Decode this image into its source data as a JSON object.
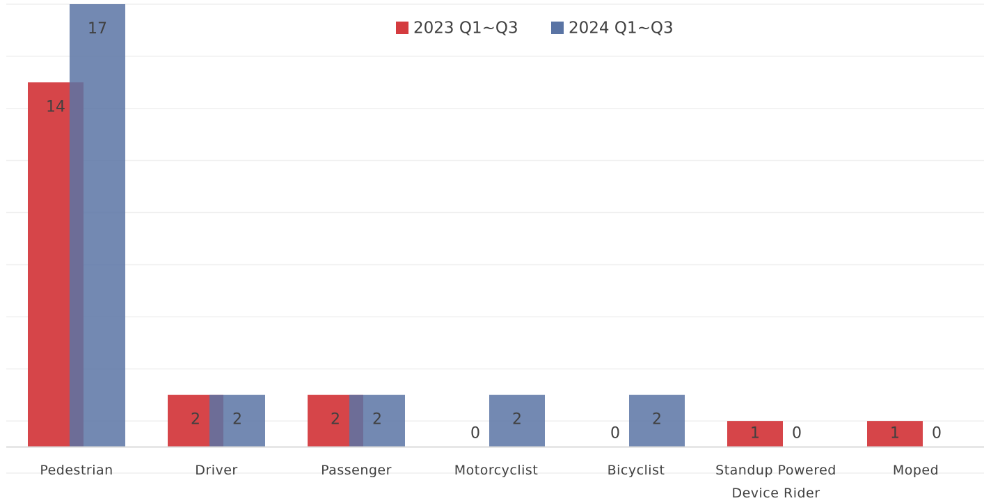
{
  "chart_data": {
    "type": "bar",
    "categories": [
      "Pedestrian",
      "Driver",
      "Passenger",
      "Motorcyclist",
      "Bicyclist",
      "Standup Powered Device Rider",
      "Moped"
    ],
    "series": [
      {
        "name": "2023 Q1~Q3",
        "color": "#d43b3f",
        "values": [
          14,
          2,
          2,
          0,
          0,
          1,
          1
        ]
      },
      {
        "name": "2024 Q1~Q3",
        "color": "#5a74a4",
        "values": [
          17,
          2,
          2,
          2,
          2,
          0,
          0
        ]
      }
    ],
    "ylim": [
      -1,
      17
    ],
    "yticks": [
      -1,
      1,
      3,
      5,
      7,
      9,
      11,
      13,
      15,
      17
    ],
    "grid": true,
    "legend": "top"
  }
}
